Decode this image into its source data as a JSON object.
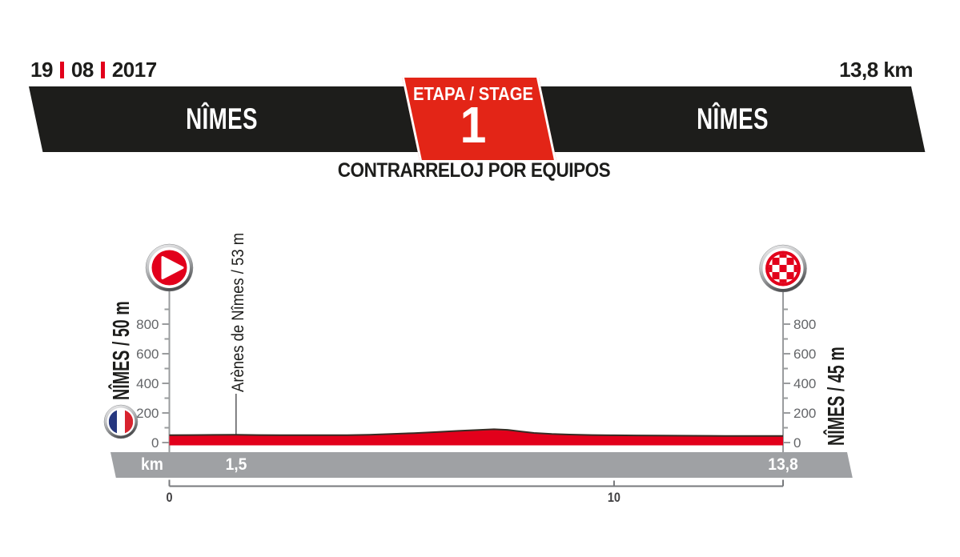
{
  "header": {
    "date_day": "19",
    "date_month": "08",
    "date_year": "2017",
    "total_distance": "13,8 km",
    "start_city": "NÎMES",
    "finish_city": "NÎMES",
    "stage_word": "ETAPA / STAGE",
    "stage_number": "1",
    "stage_type": "CONTRARRELOJ POR EQUIPOS"
  },
  "chart_data": {
    "type": "area",
    "points_km_m": [
      [
        0,
        50
      ],
      [
        0.5,
        51
      ],
      [
        1,
        52
      ],
      [
        1.5,
        53
      ],
      [
        2,
        51
      ],
      [
        2.5,
        50
      ],
      [
        3,
        50
      ],
      [
        3.5,
        50
      ],
      [
        4,
        50
      ],
      [
        4.5,
        53
      ],
      [
        5,
        58
      ],
      [
        5.5,
        64
      ],
      [
        6,
        71
      ],
      [
        6.5,
        79
      ],
      [
        7,
        86
      ],
      [
        7.3,
        90
      ],
      [
        7.6,
        86
      ],
      [
        7.9,
        75
      ],
      [
        8.2,
        65
      ],
      [
        8.6,
        58
      ],
      [
        9,
        54
      ],
      [
        9.5,
        51
      ],
      [
        10,
        49
      ],
      [
        10.5,
        48
      ],
      [
        11,
        47
      ],
      [
        11.8,
        46
      ],
      [
        12.5,
        45
      ],
      [
        13.2,
        45
      ],
      [
        13.8,
        45
      ]
    ],
    "x_axis": {
      "max_km": 13.8,
      "tick_km": [
        0,
        10
      ],
      "tick_labels": [
        "0",
        "10"
      ]
    },
    "y_axis": {
      "unit": "m",
      "major_ticks": [
        0,
        200,
        400,
        600,
        800
      ],
      "minor_ticks": [
        100,
        300,
        500,
        700,
        900
      ]
    },
    "start": {
      "label": "NÎMES / 50 m",
      "elevation_m": 50,
      "icon": "start-play-icon"
    },
    "finish": {
      "label": "NÎMES / 45 m",
      "elevation_m": 45,
      "icon": "finish-checkered-icon"
    },
    "waypoints": [
      {
        "km": 1.5,
        "km_display": "1,5",
        "elevation_m": 53,
        "label": "Arènes de Nîmes / 53 m"
      }
    ],
    "km_bar": {
      "unit": "km",
      "end_km_display": "13,8"
    },
    "legend": "none",
    "grid": "off"
  },
  "colors": {
    "red": "#e2001b",
    "badge_red": "#e32517",
    "black": "#1d1d1b",
    "gray_bar": "#9fa1a4",
    "axis_line": "#9a9c9e",
    "tick_label": "#636568",
    "bottom_axis": "#77797c",
    "bottom_label": "#414042",
    "profile_stroke": "#372c24",
    "flag_blue": "#26377f",
    "flag_red": "#d8232e"
  }
}
